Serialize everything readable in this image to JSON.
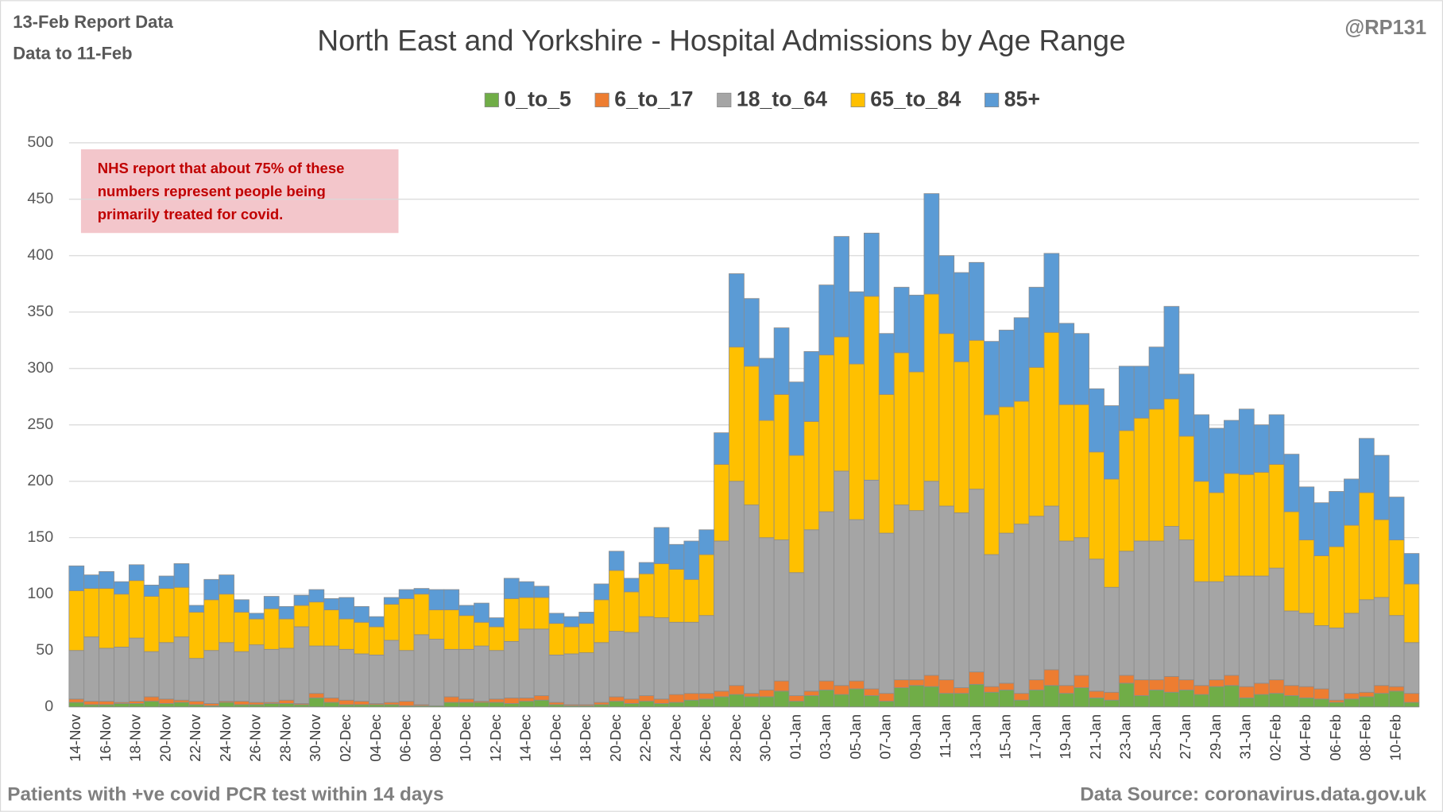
{
  "chart_data": {
    "type": "stacked_bar",
    "title": "North East and Yorkshire - Hospital Admissions by Age Range",
    "report_date": "13-Feb Report Data",
    "data_to": "Data to 11-Feb",
    "author": "@RP131",
    "annotation": [
      "NHS report that about 75% of these",
      "numbers represent people being",
      "primarily treated for covid."
    ],
    "footer_left": "Patients with  +ve covid PCR test within 14 days",
    "footer_right": "Data Source: coronavirus.data.gov.uk",
    "legend": "top",
    "grid": true,
    "ylim": [
      0,
      500
    ],
    "yticks": [
      0,
      50,
      100,
      150,
      200,
      250,
      300,
      350,
      400,
      450,
      500
    ],
    "categories": [
      "14-Nov",
      null,
      "16-Nov",
      null,
      "18-Nov",
      null,
      "20-Nov",
      null,
      "22-Nov",
      null,
      "24-Nov",
      null,
      "26-Nov",
      null,
      "28-Nov",
      null,
      "30-Nov",
      null,
      "02-Dec",
      null,
      "04-Dec",
      null,
      "06-Dec",
      null,
      "08-Dec",
      null,
      "10-Dec",
      null,
      "12-Dec",
      null,
      "14-Dec",
      null,
      "16-Dec",
      null,
      "18-Dec",
      null,
      "20-Dec",
      null,
      "22-Dec",
      null,
      "24-Dec",
      null,
      "26-Dec",
      null,
      "28-Dec",
      null,
      "30-Dec",
      null,
      "01-Jan",
      null,
      "03-Jan",
      null,
      "05-Jan",
      null,
      "07-Jan",
      null,
      "09-Jan",
      null,
      "11-Jan",
      null,
      "13-Jan",
      null,
      "15-Jan",
      null,
      "17-Jan",
      null,
      "19-Jan",
      null,
      "21-Jan",
      null,
      "23-Jan",
      null,
      "25-Jan",
      null,
      "27-Jan",
      null,
      "29-Jan",
      null,
      "31-Jan",
      null,
      "02-Feb",
      null,
      "04-Feb",
      null,
      "06-Feb",
      null,
      "08-Feb",
      null,
      "10-Feb",
      null
    ],
    "series": [
      {
        "name": "0_to_5",
        "color": "#70ad47",
        "values": [
          4,
          2,
          2,
          3,
          3,
          5,
          3,
          4,
          2,
          1,
          4,
          2,
          2,
          3,
          3,
          2,
          8,
          4,
          2,
          2,
          2,
          2,
          1,
          1,
          1,
          4,
          4,
          4,
          4,
          3,
          5,
          6,
          2,
          1,
          1,
          2,
          5,
          3,
          5,
          3,
          4,
          6,
          7,
          9,
          11,
          9,
          9,
          14,
          5,
          10,
          15,
          11,
          16,
          10,
          5,
          17,
          19,
          18,
          12,
          12,
          20,
          13,
          15,
          6,
          15,
          19,
          12,
          17,
          8,
          6,
          21,
          10,
          15,
          13,
          15,
          11,
          18,
          19,
          8,
          11,
          12,
          10,
          8,
          7,
          4,
          7,
          9,
          12,
          14,
          4
        ]
      },
      {
        "name": "6_to_17",
        "color": "#ed7d31",
        "values": [
          3,
          3,
          3,
          1,
          2,
          4,
          4,
          2,
          3,
          2,
          1,
          3,
          2,
          1,
          3,
          1,
          4,
          4,
          4,
          3,
          1,
          2,
          4,
          1,
          0,
          5,
          3,
          1,
          3,
          5,
          3,
          4,
          2,
          1,
          1,
          2,
          4,
          4,
          5,
          4,
          7,
          6,
          5,
          5,
          8,
          3,
          6,
          9,
          5,
          4,
          8,
          8,
          7,
          6,
          7,
          7,
          5,
          10,
          12,
          5,
          11,
          5,
          6,
          6,
          9,
          14,
          7,
          11,
          6,
          7,
          7,
          14,
          9,
          14,
          9,
          8,
          6,
          9,
          10,
          10,
          12,
          9,
          10,
          9,
          2,
          5,
          4,
          7,
          4,
          8
        ]
      },
      {
        "name": "18_to_64",
        "color": "#a5a5a5",
        "values": [
          43,
          57,
          47,
          49,
          56,
          40,
          50,
          56,
          38,
          47,
          52,
          44,
          51,
          47,
          46,
          68,
          42,
          46,
          45,
          42,
          43,
          55,
          45,
          62,
          59,
          42,
          44,
          49,
          43,
          50,
          61,
          59,
          42,
          45,
          46,
          53,
          58,
          59,
          70,
          72,
          64,
          63,
          69,
          133,
          181,
          167,
          135,
          125,
          109,
          143,
          150,
          190,
          143,
          185,
          142,
          155,
          150,
          172,
          154,
          155,
          162,
          117,
          133,
          150,
          145,
          145,
          128,
          122,
          117,
          93,
          110,
          123,
          123,
          133,
          124,
          92,
          87,
          88,
          98,
          95,
          99,
          66,
          65,
          56,
          64,
          71,
          82,
          78,
          63,
          45
        ]
      },
      {
        "name": "65_to_84",
        "color": "#ffc000",
        "values": [
          53,
          43,
          53,
          47,
          51,
          49,
          48,
          44,
          41,
          45,
          43,
          35,
          23,
          36,
          26,
          19,
          39,
          32,
          27,
          28,
          25,
          32,
          46,
          36,
          26,
          35,
          30,
          21,
          21,
          38,
          28,
          28,
          28,
          24,
          26,
          38,
          54,
          36,
          38,
          48,
          47,
          38,
          54,
          68,
          119,
          123,
          104,
          129,
          104,
          96,
          139,
          119,
          138,
          163,
          123,
          135,
          123,
          166,
          153,
          134,
          132,
          124,
          112,
          109,
          132,
          154,
          121,
          118,
          95,
          96,
          107,
          109,
          117,
          113,
          92,
          89,
          79,
          91,
          90,
          92,
          92,
          88,
          65,
          62,
          72,
          78,
          95,
          69,
          67,
          52
        ]
      },
      {
        "name": "85+",
        "color": "#5b9bd5",
        "values": [
          22,
          12,
          15,
          11,
          14,
          10,
          11,
          21,
          6,
          18,
          17,
          11,
          5,
          11,
          11,
          9,
          11,
          10,
          19,
          14,
          9,
          6,
          8,
          5,
          18,
          18,
          9,
          17,
          8,
          18,
          14,
          10,
          9,
          9,
          10,
          14,
          17,
          12,
          10,
          32,
          22,
          34,
          22,
          28,
          65,
          60,
          55,
          59,
          65,
          62,
          62,
          89,
          64,
          56,
          54,
          58,
          68,
          89,
          69,
          79,
          69,
          65,
          68,
          74,
          71,
          70,
          72,
          63,
          56,
          65,
          57,
          46,
          55,
          82,
          55,
          59,
          57,
          47,
          58,
          42,
          44,
          51,
          47,
          47,
          49,
          41,
          48,
          57,
          38,
          27
        ]
      }
    ]
  }
}
